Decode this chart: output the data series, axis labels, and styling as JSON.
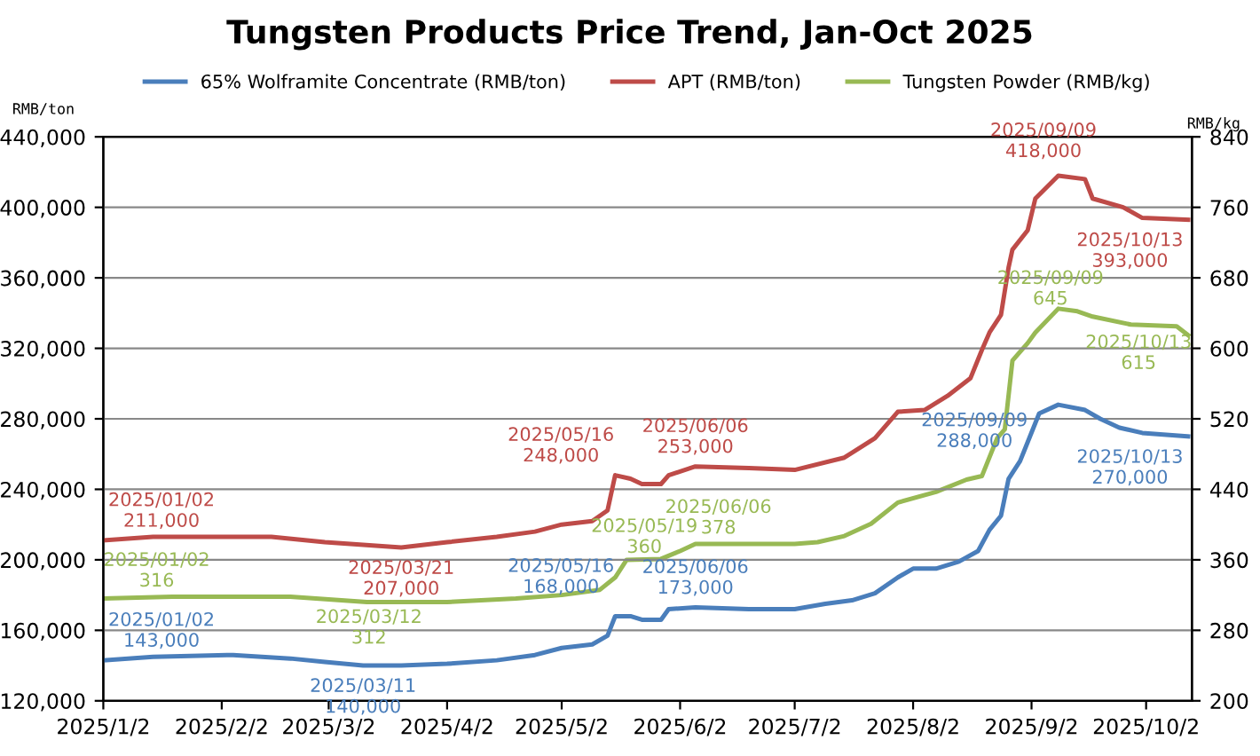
{
  "chart_data": {
    "type": "line",
    "title": "Tungsten Products Price Trend, Jan-Oct 2025",
    "ylabel": "RMB/ton",
    "y2label": "RMB/kg",
    "xlim": [
      "2025-01-02",
      "2025-10-14"
    ],
    "xticks": [
      {
        "value": "2025-01-02",
        "label": "2025/1/2"
      },
      {
        "value": "2025-02-02",
        "label": "2025/2/2"
      },
      {
        "value": "2025-03-02",
        "label": "2025/3/2"
      },
      {
        "value": "2025-04-02",
        "label": "2025/4/2"
      },
      {
        "value": "2025-05-02",
        "label": "2025/5/2"
      },
      {
        "value": "2025-06-02",
        "label": "2025/6/2"
      },
      {
        "value": "2025-07-02",
        "label": "2025/7/2"
      },
      {
        "value": "2025-08-02",
        "label": "2025/8/2"
      },
      {
        "value": "2025-09-02",
        "label": "2025/9/2"
      },
      {
        "value": "2025-10-02",
        "label": "2025/10/2"
      }
    ],
    "ylim": [
      120000,
      440000
    ],
    "yticks": [
      {
        "value": 120000,
        "label": "120,000"
      },
      {
        "value": 160000,
        "label": "160,000"
      },
      {
        "value": 200000,
        "label": "200,000"
      },
      {
        "value": 240000,
        "label": "240,000"
      },
      {
        "value": 280000,
        "label": "280,000"
      },
      {
        "value": 320000,
        "label": "320,000"
      },
      {
        "value": 360000,
        "label": "360,000"
      },
      {
        "value": 400000,
        "label": "400,000"
      },
      {
        "value": 440000,
        "label": "440,000"
      }
    ],
    "y2lim": [
      200,
      840
    ],
    "y2ticks": [
      200,
      280,
      360,
      440,
      520,
      600,
      680,
      760,
      840
    ],
    "grid": "y",
    "legend": "top",
    "marker": "none",
    "line_style": "solid",
    "series": [
      {
        "name": "65% Wolframite Concentrate (RMB/ton)",
        "color": "#4a7ebb",
        "x": [
          "2025-01-02",
          "2025-01-15",
          "2025-02-05",
          "2025-02-20",
          "2025-03-01",
          "2025-03-11",
          "2025-03-21",
          "2025-04-02",
          "2025-04-15",
          "2025-04-25",
          "2025-05-02",
          "2025-05-10",
          "2025-05-14",
          "2025-05-16",
          "2025-05-20",
          "2025-05-23",
          "2025-05-28",
          "2025-05-30",
          "2025-06-06",
          "2025-06-20",
          "2025-07-02",
          "2025-07-10",
          "2025-07-17",
          "2025-07-23",
          "2025-07-29",
          "2025-08-02",
          "2025-08-08",
          "2025-08-14",
          "2025-08-19",
          "2025-08-22",
          "2025-08-25",
          "2025-08-27",
          "2025-08-30",
          "2025-09-04",
          "2025-09-09",
          "2025-09-16",
          "2025-09-20",
          "2025-09-25",
          "2025-10-01",
          "2025-10-13"
        ],
        "values": [
          143000,
          145000,
          146000,
          144000,
          142000,
          140000,
          140000,
          141000,
          143000,
          146000,
          150000,
          152000,
          157000,
          168000,
          168000,
          166000,
          166000,
          172000,
          173000,
          172000,
          172000,
          175000,
          177000,
          181000,
          190000,
          195000,
          195000,
          199000,
          205000,
          217000,
          225000,
          246000,
          256000,
          283000,
          288000,
          285000,
          280000,
          275000,
          272000,
          270000
        ]
      },
      {
        "name": "APT (RMB/ton)",
        "color": "#be4b48",
        "x": [
          "2025-01-02",
          "2025-01-15",
          "2025-02-15",
          "2025-03-01",
          "2025-03-21",
          "2025-04-02",
          "2025-04-15",
          "2025-04-25",
          "2025-05-02",
          "2025-05-10",
          "2025-05-14",
          "2025-05-16",
          "2025-05-20",
          "2025-05-23",
          "2025-05-28",
          "2025-05-30",
          "2025-06-06",
          "2025-06-20",
          "2025-07-02",
          "2025-07-15",
          "2025-07-23",
          "2025-07-29",
          "2025-08-05",
          "2025-08-11",
          "2025-08-17",
          "2025-08-20",
          "2025-08-22",
          "2025-08-25",
          "2025-08-27",
          "2025-08-28",
          "2025-09-01",
          "2025-09-03",
          "2025-09-09",
          "2025-09-16",
          "2025-09-18",
          "2025-09-26",
          "2025-10-01",
          "2025-10-13"
        ],
        "values": [
          211000,
          213000,
          213000,
          210000,
          207000,
          210000,
          213000,
          216000,
          220000,
          222000,
          228000,
          248000,
          246000,
          243000,
          243000,
          248000,
          253000,
          252000,
          251000,
          258000,
          269000,
          284000,
          285000,
          293000,
          303000,
          319000,
          329000,
          339000,
          366000,
          376000,
          387000,
          405000,
          418000,
          416000,
          405000,
          400000,
          394000,
          393000
        ]
      },
      {
        "name": "Tungsten Powder (RMB/kg)",
        "color": "#98b954",
        "axis": "y2",
        "x": [
          "2025-01-02",
          "2025-01-20",
          "2025-02-20",
          "2025-03-12",
          "2025-04-02",
          "2025-04-20",
          "2025-05-02",
          "2025-05-12",
          "2025-05-16",
          "2025-05-19",
          "2025-05-28",
          "2025-06-02",
          "2025-06-06",
          "2025-07-02",
          "2025-07-08",
          "2025-07-15",
          "2025-07-22",
          "2025-07-29",
          "2025-08-08",
          "2025-08-16",
          "2025-08-20",
          "2025-08-24",
          "2025-08-26",
          "2025-08-28",
          "2025-09-01",
          "2025-09-03",
          "2025-09-09",
          "2025-09-14",
          "2025-09-18",
          "2025-09-28",
          "2025-10-10",
          "2025-10-13"
        ],
        "values": [
          316,
          318,
          318,
          312,
          312,
          316,
          320,
          326,
          340,
          360,
          361,
          370,
          378,
          378,
          380,
          387,
          401,
          425,
          437,
          451,
          455,
          498,
          508,
          586,
          606,
          618,
          645,
          642,
          636,
          627,
          625,
          615
        ]
      }
    ],
    "annotations": [
      {
        "text": "2025/01/02\n211,000",
        "x": "2025-01-02",
        "y": 211000
      },
      {
        "text": "2025/03/21\n207,000",
        "x": "2025-03-21",
        "y": 207000
      },
      {
        "text": "2025/05/16\n248,000",
        "x": "2025-05-16",
        "y": 248000
      },
      {
        "text": "2025/06/06\n253,000",
        "x": "2025-06-06",
        "y": 253000
      },
      {
        "text": "2025/09/09\n418,000",
        "x": "2025-09-09",
        "y": 418000
      },
      {
        "text": "2025/10/13\n393,000",
        "x": "2025-10-13",
        "y": 393000
      },
      {
        "text": "2025/01/02\n143,000",
        "x": "2025-01-02",
        "y": 143000
      },
      {
        "text": "2025/03/11\n140,000",
        "x": "2025-03-11",
        "y": 140000
      },
      {
        "text": "2025/05/16\n168,000",
        "x": "2025-05-16",
        "y": 168000
      },
      {
        "text": "2025/06/06\n173,000",
        "x": "2025-06-06",
        "y": 173000
      },
      {
        "text": "2025/09/09\n288,000",
        "x": "2025-09-09",
        "y": 288000
      },
      {
        "text": "2025/10/13\n270,000",
        "x": "2025-10-13",
        "y": 270000
      },
      "2025/01/02\n316",
      "2025/03/12\n312",
      "2025/05/19\n360",
      "2025/06/06\n378",
      "2025/09/09\n645",
      "2025/10/13\n615"
    ]
  }
}
